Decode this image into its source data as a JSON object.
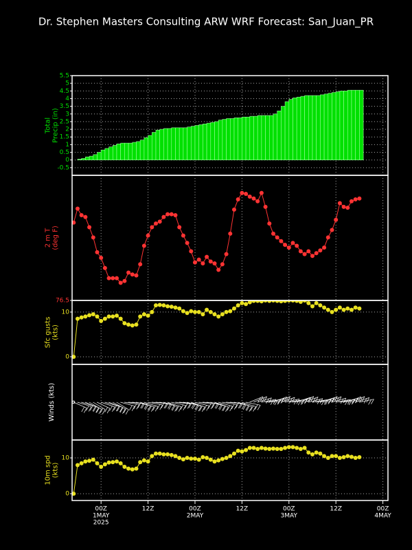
{
  "chart_data": {
    "title": "Dr. Stephen Masters Consulting  ARW WRF Forecast: San_Juan_PR",
    "x": [
      -7,
      -6,
      -5,
      -4,
      -3,
      -2,
      -1,
      0,
      1,
      2,
      3,
      4,
      5,
      6,
      7,
      8,
      9,
      10,
      11,
      12,
      13,
      14,
      15,
      16,
      17,
      18,
      19,
      20,
      21,
      22,
      23,
      24,
      25,
      26,
      27,
      28,
      29,
      30,
      31,
      32,
      33,
      34,
      35,
      36,
      37,
      38,
      39,
      40,
      41,
      42,
      43,
      44,
      45,
      46,
      47,
      48,
      49,
      50,
      51,
      52,
      53,
      54,
      55,
      56,
      57,
      58,
      59,
      60,
      61,
      62,
      63,
      64,
      65,
      66
    ],
    "xlim": [
      -7.4,
      73.3
    ],
    "xticks": [
      {
        "value": 0,
        "label": [
          "00Z",
          "1MAY",
          "2025"
        ]
      },
      {
        "value": 12,
        "label": [
          "12Z"
        ]
      },
      {
        "value": 24,
        "label": [
          "00Z",
          "2MAY"
        ]
      },
      {
        "value": 36,
        "label": [
          "12Z"
        ]
      },
      {
        "value": 48,
        "label": [
          "00Z",
          "3MAY"
        ]
      },
      {
        "value": 60,
        "label": [
          "12Z"
        ]
      },
      {
        "value": 72,
        "label": [
          "00Z",
          "4MAY"
        ]
      }
    ],
    "panels": [
      {
        "type": "bar",
        "ylabel": [
          "Total",
          "Precip (in)"
        ],
        "color": "#00e000",
        "ylim": [
          -1,
          5.5
        ],
        "yticks": [
          -0.5,
          0,
          0.5,
          1,
          1.5,
          2,
          2.5,
          3,
          3.5,
          4,
          4.5,
          5,
          5.5
        ],
        "grid": true,
        "values": [
          0,
          0.05,
          0.1,
          0.2,
          0.25,
          0.35,
          0.5,
          0.65,
          0.75,
          0.85,
          0.95,
          1.05,
          1.1,
          1.1,
          1.1,
          1.15,
          1.2,
          1.3,
          1.45,
          1.6,
          1.8,
          1.95,
          2.0,
          2.05,
          2.05,
          2.1,
          2.1,
          2.1,
          2.1,
          2.15,
          2.2,
          2.25,
          2.3,
          2.35,
          2.4,
          2.45,
          2.5,
          2.6,
          2.65,
          2.7,
          2.7,
          2.75,
          2.75,
          2.8,
          2.8,
          2.85,
          2.85,
          2.9,
          2.9,
          2.9,
          2.9,
          3.0,
          3.2,
          3.5,
          3.8,
          3.95,
          4.05,
          4.1,
          4.15,
          4.2,
          4.2,
          4.2,
          4.2,
          4.25,
          4.3,
          4.35,
          4.4,
          4.45,
          4.5,
          4.5,
          4.55,
          4.55,
          4.55,
          4.55
        ]
      },
      {
        "type": "line",
        "ylabel": [
          "2 m T",
          "(deg F)"
        ],
        "color": "#ff3333",
        "ylim": [
          76.5,
          90
        ],
        "yticks": [
          76.5
        ],
        "grid": false,
        "values": [
          84.9,
          86.4,
          85.7,
          85.5,
          84.4,
          83.3,
          81.7,
          81.1,
          80.0,
          78.9,
          78.9,
          78.9,
          78.4,
          78.6,
          79.5,
          79.3,
          79.2,
          80.4,
          82.4,
          83.5,
          84.4,
          84.8,
          85.0,
          85.5,
          85.8,
          85.8,
          85.7,
          84.4,
          83.5,
          82.7,
          81.8,
          80.6,
          80.9,
          80.5,
          81.2,
          80.7,
          80.5,
          79.8,
          80.4,
          81.5,
          83.7,
          86.3,
          87.4,
          88.1,
          88.0,
          87.7,
          87.5,
          87.2,
          88.1,
          86.6,
          84.8,
          83.7,
          83.3,
          82.9,
          82.5,
          82.2,
          82.7,
          82.4,
          81.8,
          81.5,
          81.8,
          81.3,
          81.6,
          81.9,
          82.2,
          83.3,
          84.1,
          85.2,
          87.0,
          86.6,
          86.5,
          87.2,
          87.4,
          87.5
        ]
      },
      {
        "type": "line",
        "ylabel": [
          "Sfc gusts",
          "(kts)"
        ],
        "color": "#e8e020",
        "ylim": [
          -1.7,
          12.6
        ],
        "yticks": [
          0,
          10
        ],
        "grid": true,
        "values": [
          0,
          8.5,
          8.8,
          9.0,
          9.3,
          9.5,
          9.0,
          8.0,
          8.5,
          9.0,
          9.0,
          9.2,
          8.5,
          7.5,
          7.2,
          7.0,
          7.2,
          9.0,
          9.5,
          9.2,
          10.0,
          11.5,
          11.6,
          11.5,
          11.3,
          11.2,
          11.0,
          10.8,
          10.2,
          9.8,
          10.2,
          10.0,
          10.0,
          9.5,
          10.5,
          10.0,
          9.5,
          9.0,
          9.5,
          10.0,
          10.2,
          10.8,
          11.5,
          12.0,
          11.8,
          12.2,
          12.5,
          12.5,
          12.4,
          12.6,
          12.5,
          12.6,
          12.5,
          12.4,
          12.5,
          12.6,
          12.6,
          12.5,
          12.3,
          12.6,
          12.0,
          11.3,
          12.0,
          11.5,
          11.0,
          10.5,
          10.0,
          10.5,
          11.0,
          10.5,
          10.8,
          10.5,
          11.0,
          10.8
        ]
      },
      {
        "type": "barb",
        "ylabel": [
          "Winds (kts)"
        ],
        "color": "#ffffff"
      },
      {
        "type": "line",
        "ylabel": [
          "10m spd",
          "(kts)"
        ],
        "color": "#e8e020",
        "ylim": [
          -1.9,
          15
        ],
        "yticks": [
          0,
          10
        ],
        "grid": true,
        "values": [
          0,
          8.0,
          8.5,
          9.0,
          9.2,
          9.5,
          8.5,
          7.5,
          8.2,
          8.7,
          8.8,
          9.0,
          8.5,
          7.5,
          7.0,
          6.8,
          7.0,
          8.8,
          9.3,
          9.0,
          10.5,
          11.2,
          11.2,
          11.0,
          11.0,
          10.8,
          10.5,
          10.0,
          9.6,
          10.0,
          9.8,
          9.8,
          9.5,
          10.2,
          10.0,
          9.5,
          9.0,
          9.3,
          9.7,
          10.0,
          10.5,
          11.2,
          12.0,
          11.8,
          12.2,
          12.8,
          12.8,
          12.5,
          12.8,
          12.6,
          12.5,
          12.6,
          12.5,
          12.5,
          12.8,
          13.0,
          13.0,
          12.8,
          12.5,
          12.8,
          11.5,
          11.0,
          11.5,
          11.2,
          10.5,
          10.0,
          10.5,
          10.5,
          10.0,
          10.2,
          10.5,
          10.3,
          10.0,
          10.2
        ]
      }
    ]
  }
}
